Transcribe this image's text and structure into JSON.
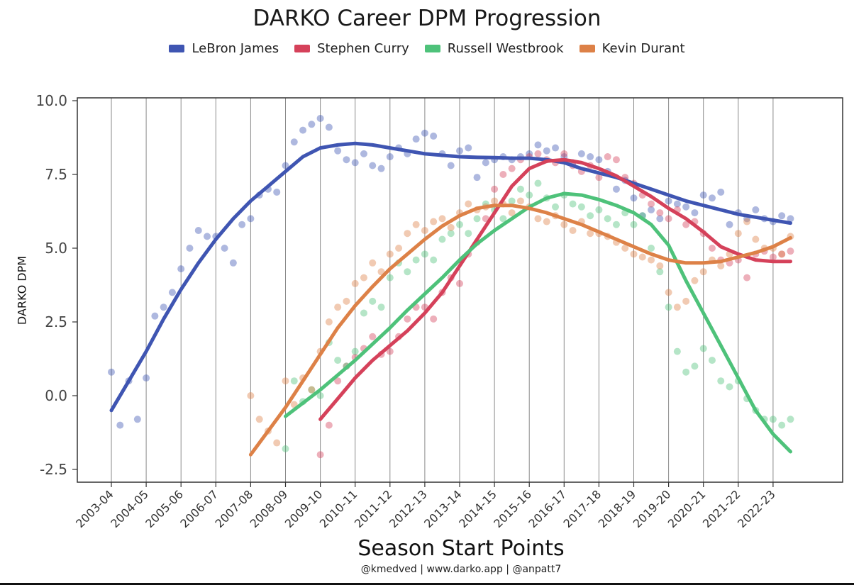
{
  "chart_data": {
    "type": "scatter",
    "title": "DARKO Career DPM Progression",
    "xlabel": "Season Start Points",
    "ylabel": "DARKO DPM",
    "credits": "@kmedved | www.darko.app | @anpatt7",
    "ylim": [
      -3.0,
      10.0
    ],
    "y_ticks": [
      "10.0",
      "7.5",
      "5.0",
      "2.5",
      "0.0",
      "-2.5"
    ],
    "seasons": [
      "2003-04",
      "2004-05",
      "2005-06",
      "2006-07",
      "2007-08",
      "2008-09",
      "2009-10",
      "2010-11",
      "2011-12",
      "2012-13",
      "2013-14",
      "2014-15",
      "2015-16",
      "2016-17",
      "2017-18",
      "2018-19",
      "2019-20",
      "2020-21",
      "2021-22",
      "2022-23"
    ],
    "grid": "vertical lines at season starts",
    "legend_position": "top",
    "series": [
      {
        "name": "LeBron James",
        "color": "#3f55b2",
        "fit_x": [
          0,
          0.5,
          1,
          1.5,
          2,
          2.5,
          3,
          3.5,
          4,
          4.5,
          5,
          5.5,
          6,
          6.5,
          7,
          7.5,
          8,
          8.5,
          9,
          9.5,
          10,
          10.5,
          11,
          11.5,
          12,
          12.5,
          13,
          13.5,
          14,
          14.5,
          15,
          15.5,
          16,
          16.5,
          17,
          17.5,
          18,
          18.5,
          19,
          19.5
        ],
        "fit_y": [
          -0.5,
          0.5,
          1.5,
          2.6,
          3.6,
          4.5,
          5.3,
          6.0,
          6.6,
          7.1,
          7.6,
          8.1,
          8.4,
          8.5,
          8.55,
          8.5,
          8.4,
          8.3,
          8.2,
          8.15,
          8.1,
          8.08,
          8.07,
          8.05,
          8.05,
          8.0,
          7.9,
          7.7,
          7.55,
          7.4,
          7.2,
          7.0,
          6.8,
          6.6,
          6.45,
          6.3,
          6.15,
          6.05,
          5.95,
          5.85
        ],
        "points_x": [
          0,
          0.25,
          0.5,
          0.75,
          1,
          1.25,
          1.5,
          1.75,
          2,
          2.25,
          2.5,
          2.75,
          3,
          3.25,
          3.5,
          3.75,
          4,
          4.25,
          4.5,
          4.75,
          5,
          5.25,
          5.5,
          5.75,
          6,
          6.25,
          6.5,
          6.75,
          7,
          7.25,
          7.5,
          7.75,
          8,
          8.25,
          8.5,
          8.75,
          9,
          9.25,
          9.5,
          9.75,
          10,
          10.25,
          10.5,
          10.75,
          11,
          11.25,
          11.5,
          11.75,
          12,
          12.25,
          12.5,
          12.75,
          13,
          13.25,
          13.5,
          13.75,
          14,
          14.25,
          14.5,
          14.75,
          15,
          15.25,
          15.5,
          15.75,
          16,
          16.25,
          16.5,
          16.75,
          17,
          17.25,
          17.5,
          17.75,
          18,
          18.25,
          18.5,
          18.75,
          19,
          19.25,
          19.5
        ],
        "points_y": [
          0.8,
          -1.0,
          0.5,
          -0.8,
          0.6,
          2.7,
          3.0,
          3.5,
          4.3,
          5.0,
          5.6,
          5.4,
          5.4,
          5.0,
          4.5,
          5.8,
          6.0,
          6.8,
          7.0,
          6.9,
          7.8,
          8.6,
          9.0,
          9.2,
          9.4,
          9.1,
          8.3,
          8.0,
          7.9,
          8.2,
          7.8,
          7.7,
          8.1,
          8.4,
          8.2,
          8.7,
          8.9,
          8.8,
          8.2,
          7.8,
          8.3,
          8.4,
          7.4,
          7.9,
          8.0,
          8.1,
          8.0,
          8.1,
          8.2,
          8.5,
          8.3,
          8.4,
          8.1,
          7.9,
          8.2,
          8.1,
          8.0,
          7.6,
          7.0,
          7.3,
          6.7,
          6.1,
          6.3,
          6.0,
          6.6,
          6.5,
          6.4,
          6.2,
          6.8,
          6.7,
          6.9,
          5.8,
          6.2,
          6.0,
          6.3,
          6.0,
          5.9,
          6.1,
          6.0
        ]
      },
      {
        "name": "Stephen Curry",
        "color": "#d5415a",
        "fit_x": [
          6,
          6.5,
          7,
          7.5,
          8,
          8.5,
          9,
          9.5,
          10,
          10.5,
          11,
          11.5,
          12,
          12.5,
          13,
          13.5,
          14,
          14.5,
          15,
          15.5,
          16,
          16.5,
          17,
          17.5,
          18,
          18.5,
          19,
          19.5
        ],
        "fit_y": [
          -0.8,
          -0.1,
          0.6,
          1.2,
          1.7,
          2.2,
          2.8,
          3.5,
          4.4,
          5.3,
          6.2,
          7.1,
          7.7,
          7.95,
          8.0,
          7.9,
          7.7,
          7.45,
          7.1,
          6.75,
          6.35,
          6.0,
          5.55,
          5.05,
          4.8,
          4.6,
          4.55,
          4.55
        ],
        "points_x": [
          6,
          6.25,
          6.5,
          6.75,
          7,
          7.25,
          7.5,
          7.75,
          8,
          8.25,
          8.5,
          8.75,
          9,
          9.25,
          9.5,
          9.75,
          10,
          10.25,
          10.5,
          10.75,
          11,
          11.25,
          11.5,
          11.75,
          12,
          12.25,
          12.5,
          12.75,
          13,
          13.25,
          13.5,
          13.75,
          14,
          14.25,
          14.5,
          14.75,
          15,
          15.25,
          15.5,
          15.75,
          16,
          16.25,
          16.5,
          16.75,
          17,
          17.25,
          17.5,
          17.75,
          18,
          18.25,
          18.5,
          18.75,
          19,
          19.25,
          19.5
        ],
        "points_y": [
          -2.0,
          -1.0,
          0.5,
          1.0,
          1.3,
          1.6,
          2.0,
          1.4,
          1.5,
          2.0,
          2.6,
          3.0,
          3.0,
          2.6,
          3.5,
          4.0,
          3.8,
          4.8,
          5.2,
          6.0,
          7.0,
          7.5,
          7.7,
          8.0,
          8.1,
          8.2,
          8.0,
          7.9,
          8.2,
          7.8,
          7.6,
          7.8,
          7.4,
          8.1,
          8.0,
          7.4,
          7.2,
          6.8,
          6.5,
          6.2,
          6.0,
          6.3,
          5.8,
          5.9,
          5.5,
          5.0,
          4.6,
          4.5,
          4.6,
          4.0,
          4.8,
          4.9,
          4.7,
          4.8,
          4.9
        ]
      },
      {
        "name": "Russell Westbrook",
        "color": "#4ec27a",
        "fit_x": [
          5,
          5.5,
          6,
          6.5,
          7,
          7.5,
          8,
          8.5,
          9,
          9.5,
          10,
          10.5,
          11,
          11.5,
          12,
          12.5,
          13,
          13.5,
          14,
          14.5,
          15,
          15.5,
          16,
          16.5,
          17,
          17.5,
          18,
          18.5,
          19,
          19.5
        ],
        "fit_y": [
          -0.7,
          -0.25,
          0.2,
          0.7,
          1.2,
          1.75,
          2.3,
          2.9,
          3.45,
          4.0,
          4.6,
          5.15,
          5.6,
          6.0,
          6.4,
          6.7,
          6.85,
          6.8,
          6.65,
          6.45,
          6.2,
          5.8,
          5.1,
          3.9,
          2.8,
          1.7,
          0.6,
          -0.5,
          -1.3,
          -1.9
        ],
        "points_x": [
          5,
          5.25,
          5.5,
          5.75,
          6,
          6.25,
          6.5,
          6.75,
          7,
          7.25,
          7.5,
          7.75,
          8,
          8.25,
          8.5,
          8.75,
          9,
          9.25,
          9.5,
          9.75,
          10,
          10.25,
          10.5,
          10.75,
          11,
          11.25,
          11.5,
          11.75,
          12,
          12.25,
          12.5,
          12.75,
          13,
          13.25,
          13.5,
          13.75,
          14,
          14.25,
          14.5,
          14.75,
          15,
          15.25,
          15.5,
          15.75,
          16,
          16.25,
          16.5,
          16.75,
          17,
          17.25,
          17.5,
          17.75,
          18,
          18.25,
          18.5,
          18.75,
          19,
          19.25,
          19.5
        ],
        "points_y": [
          -1.8,
          0.5,
          -0.2,
          0.2,
          0.0,
          1.8,
          1.2,
          1.0,
          1.5,
          2.8,
          3.2,
          3.0,
          4.0,
          4.5,
          4.2,
          4.6,
          4.8,
          4.6,
          5.3,
          5.5,
          5.8,
          5.5,
          6.0,
          6.5,
          6.3,
          6.0,
          6.6,
          7.0,
          6.8,
          7.2,
          6.7,
          6.4,
          6.8,
          6.5,
          6.4,
          6.1,
          6.3,
          6.0,
          5.8,
          6.2,
          5.8,
          6.1,
          5.0,
          4.2,
          3.0,
          1.5,
          0.8,
          1.0,
          1.6,
          1.2,
          0.5,
          0.3,
          0.5,
          -0.1,
          -0.5,
          -0.8,
          -0.8,
          -1.0,
          -0.8
        ]
      },
      {
        "name": "Kevin Durant",
        "color": "#dd8147",
        "fit_x": [
          4,
          4.5,
          5,
          5.5,
          6,
          6.5,
          7,
          7.5,
          8,
          8.5,
          9,
          9.5,
          10,
          10.5,
          11,
          11.5,
          12,
          12.5,
          13,
          13.5,
          14,
          14.5,
          15,
          15.5,
          16,
          16.5,
          17,
          17.5,
          18,
          18.5,
          19,
          19.5
        ],
        "fit_y": [
          -2.0,
          -1.2,
          -0.4,
          0.5,
          1.4,
          2.3,
          3.05,
          3.7,
          4.3,
          4.8,
          5.3,
          5.75,
          6.1,
          6.35,
          6.45,
          6.45,
          6.35,
          6.2,
          6.0,
          5.8,
          5.55,
          5.3,
          5.05,
          4.8,
          4.6,
          4.5,
          4.5,
          4.55,
          4.7,
          4.85,
          5.05,
          5.35
        ],
        "points_x": [
          4,
          4.25,
          4.5,
          4.75,
          5,
          5.25,
          5.5,
          5.75,
          6,
          6.25,
          6.5,
          6.75,
          7,
          7.25,
          7.5,
          7.75,
          8,
          8.25,
          8.5,
          8.75,
          9,
          9.25,
          9.5,
          9.75,
          10,
          10.25,
          10.5,
          10.75,
          11,
          11.25,
          11.5,
          11.75,
          12,
          12.25,
          12.5,
          12.75,
          13,
          13.25,
          13.5,
          13.75,
          14,
          14.25,
          14.5,
          14.75,
          15,
          15.25,
          15.5,
          15.75,
          16,
          16.25,
          16.5,
          16.75,
          17,
          17.25,
          17.5,
          17.75,
          18,
          18.25,
          18.5,
          18.75,
          19,
          19.25,
          19.5
        ],
        "points_y": [
          0.0,
          -0.8,
          -1.2,
          -1.6,
          0.5,
          -0.3,
          0.6,
          0.2,
          1.5,
          2.5,
          3.0,
          3.2,
          3.8,
          4.0,
          4.5,
          4.2,
          4.8,
          5.0,
          5.5,
          5.8,
          5.6,
          5.9,
          6.0,
          5.7,
          6.2,
          6.5,
          6.3,
          6.4,
          6.6,
          6.5,
          6.2,
          6.6,
          6.4,
          6.0,
          5.9,
          6.1,
          5.8,
          5.6,
          5.9,
          5.5,
          5.5,
          5.4,
          5.2,
          5.0,
          4.8,
          4.7,
          4.6,
          4.4,
          3.5,
          3.0,
          3.2,
          3.9,
          4.2,
          4.6,
          4.4,
          4.8,
          5.5,
          5.9,
          5.3,
          5.0,
          5.0,
          4.8,
          5.4
        ]
      }
    ]
  }
}
